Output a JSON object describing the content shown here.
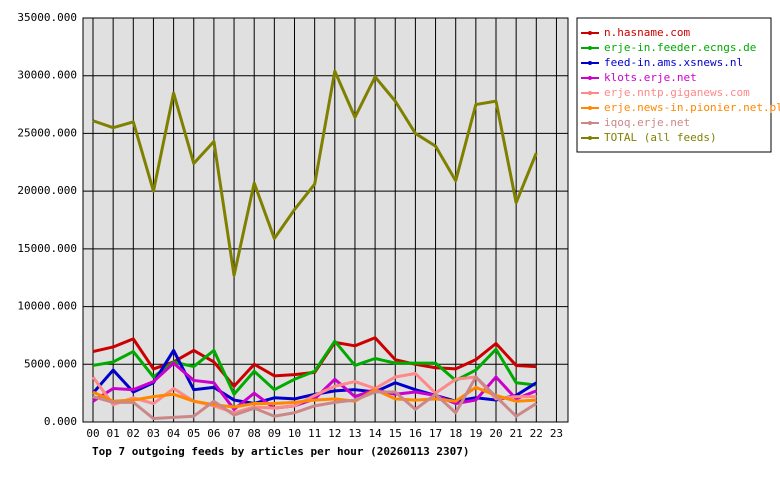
{
  "chart_data": {
    "type": "line",
    "title": "Top 7 outgoing feeds by articles per hour (20260113 2307)",
    "categories": [
      "00",
      "01",
      "02",
      "03",
      "04",
      "05",
      "06",
      "07",
      "08",
      "09",
      "10",
      "11",
      "12",
      "13",
      "14",
      "15",
      "16",
      "17",
      "18",
      "19",
      "20",
      "21",
      "22",
      "23"
    ],
    "ylim": [
      0,
      35000
    ],
    "yticks": [
      {
        "value": 0,
        "label": "0.000"
      },
      {
        "value": 5000,
        "label": "5000.000"
      },
      {
        "value": 10000,
        "label": "10000.000"
      },
      {
        "value": 15000,
        "label": "15000.000"
      },
      {
        "value": 20000,
        "label": "20000.000"
      },
      {
        "value": 25000,
        "label": "25000.000"
      },
      {
        "value": 30000,
        "label": "30000.000"
      },
      {
        "value": 35000,
        "label": "35000.000"
      }
    ],
    "grid": true,
    "legend": "right",
    "series": [
      {
        "name": "n.hasname.com",
        "color": "#cc0000",
        "values": [
          6100,
          6500,
          7200,
          4600,
          5200,
          6200,
          5200,
          3100,
          5000,
          4000,
          4100,
          4300,
          6900,
          6600,
          7300,
          5400,
          5000,
          4700,
          4600,
          5400,
          6800,
          4900,
          4800,
          null
        ]
      },
      {
        "name": "erje-in.feeder.ecngs.de",
        "color": "#00aa00",
        "values": [
          4900,
          5200,
          6100,
          3900,
          5200,
          4800,
          6200,
          2400,
          4400,
          2800,
          3700,
          4400,
          7000,
          4900,
          5500,
          5100,
          5100,
          5100,
          3600,
          4500,
          6300,
          3400,
          3200,
          null
        ]
      },
      {
        "name": "feed-in.ams.xsnews.nl",
        "color": "#0000cc",
        "values": [
          2500,
          4500,
          2600,
          3400,
          6200,
          2800,
          3000,
          1900,
          1600,
          2100,
          2000,
          2400,
          2700,
          2800,
          2600,
          3400,
          2800,
          2300,
          1800,
          2100,
          1900,
          2300,
          3400,
          null
        ]
      },
      {
        "name": "klots.erje.net",
        "color": "#cc00cc",
        "values": [
          1800,
          2900,
          2800,
          3500,
          5100,
          3600,
          3400,
          1100,
          2500,
          1200,
          1400,
          2000,
          3700,
          2200,
          2800,
          2400,
          2600,
          2300,
          1600,
          1900,
          3900,
          2000,
          2700,
          null
        ]
      },
      {
        "name": "erje.nntp.giganews.com",
        "color": "#ff8888",
        "values": [
          3900,
          1500,
          2100,
          1600,
          2900,
          1800,
          1400,
          800,
          1300,
          1200,
          1400,
          2300,
          3100,
          3500,
          2900,
          3900,
          4200,
          2500,
          3700,
          3900,
          2000,
          2200,
          2200,
          null
        ]
      },
      {
        "name": "erje.news-in.pionier.net.pl",
        "color": "#ff8800",
        "values": [
          2600,
          1800,
          1900,
          2200,
          2400,
          1800,
          1500,
          1300,
          1600,
          1600,
          1700,
          1900,
          2000,
          1800,
          2800,
          2000,
          1900,
          2000,
          1800,
          3000,
          2300,
          1800,
          1900,
          null
        ]
      },
      {
        "name": "iqoq.erje.net",
        "color": "#cc8888",
        "values": [
          2200,
          1700,
          1700,
          300,
          400,
          500,
          1800,
          600,
          1200,
          500,
          800,
          1400,
          1700,
          1900,
          2600,
          2600,
          1100,
          2400,
          800,
          3900,
          2200,
          500,
          1600,
          null
        ]
      },
      {
        "name": "TOTAL (all feeds)",
        "color": "#808000",
        "values": [
          26100,
          25500,
          26000,
          20000,
          28500,
          22400,
          24300,
          12700,
          20700,
          15900,
          18400,
          20600,
          30400,
          26400,
          29900,
          27800,
          25000,
          23900,
          20900,
          27500,
          27800,
          19000,
          23300,
          null
        ]
      }
    ]
  }
}
